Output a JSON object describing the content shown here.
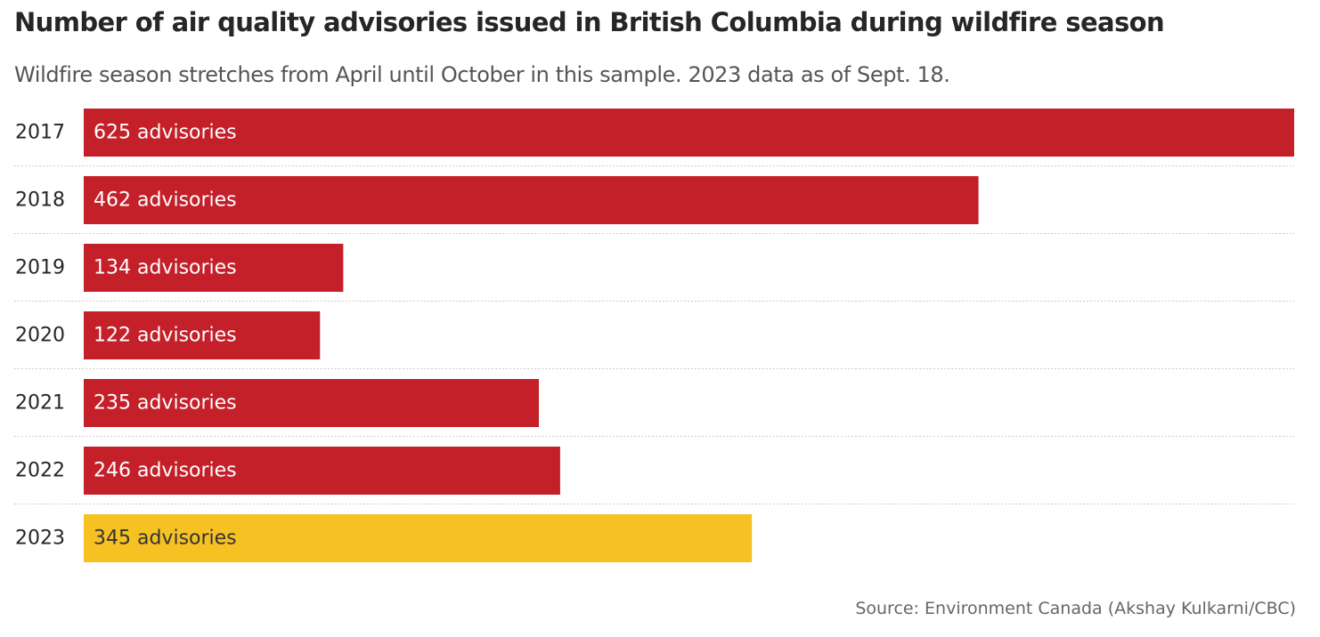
{
  "title": "Number of air quality advisories issued in British Columbia during wildfire season",
  "subtitle": "Wildfire season stretches from April until October in this sample. 2023 data as of Sept. 18.",
  "source": "Source: Environment Canada (Akshay Kulkarni/CBC)",
  "colors": {
    "default_bar": "#c4202a",
    "highlight_bar": "#f6c123",
    "label_on_default": "#ffffff",
    "label_on_highlight": "#333333",
    "year_label": "#262626",
    "separator": "#cccccc"
  },
  "chart_data": {
    "type": "bar",
    "orientation": "horizontal",
    "categories": [
      "2017",
      "2018",
      "2019",
      "2020",
      "2021",
      "2022",
      "2023"
    ],
    "values": [
      625,
      462,
      134,
      122,
      235,
      246,
      345
    ],
    "data_labels": [
      "625 advisories",
      "462 advisories",
      "134 advisories",
      "122 advisories",
      "235 advisories",
      "246 advisories",
      "345 advisories"
    ],
    "highlight_category": "2023",
    "xlim": [
      0,
      625
    ],
    "xlabel": "",
    "ylabel": "",
    "grid": false,
    "legend": "none"
  }
}
